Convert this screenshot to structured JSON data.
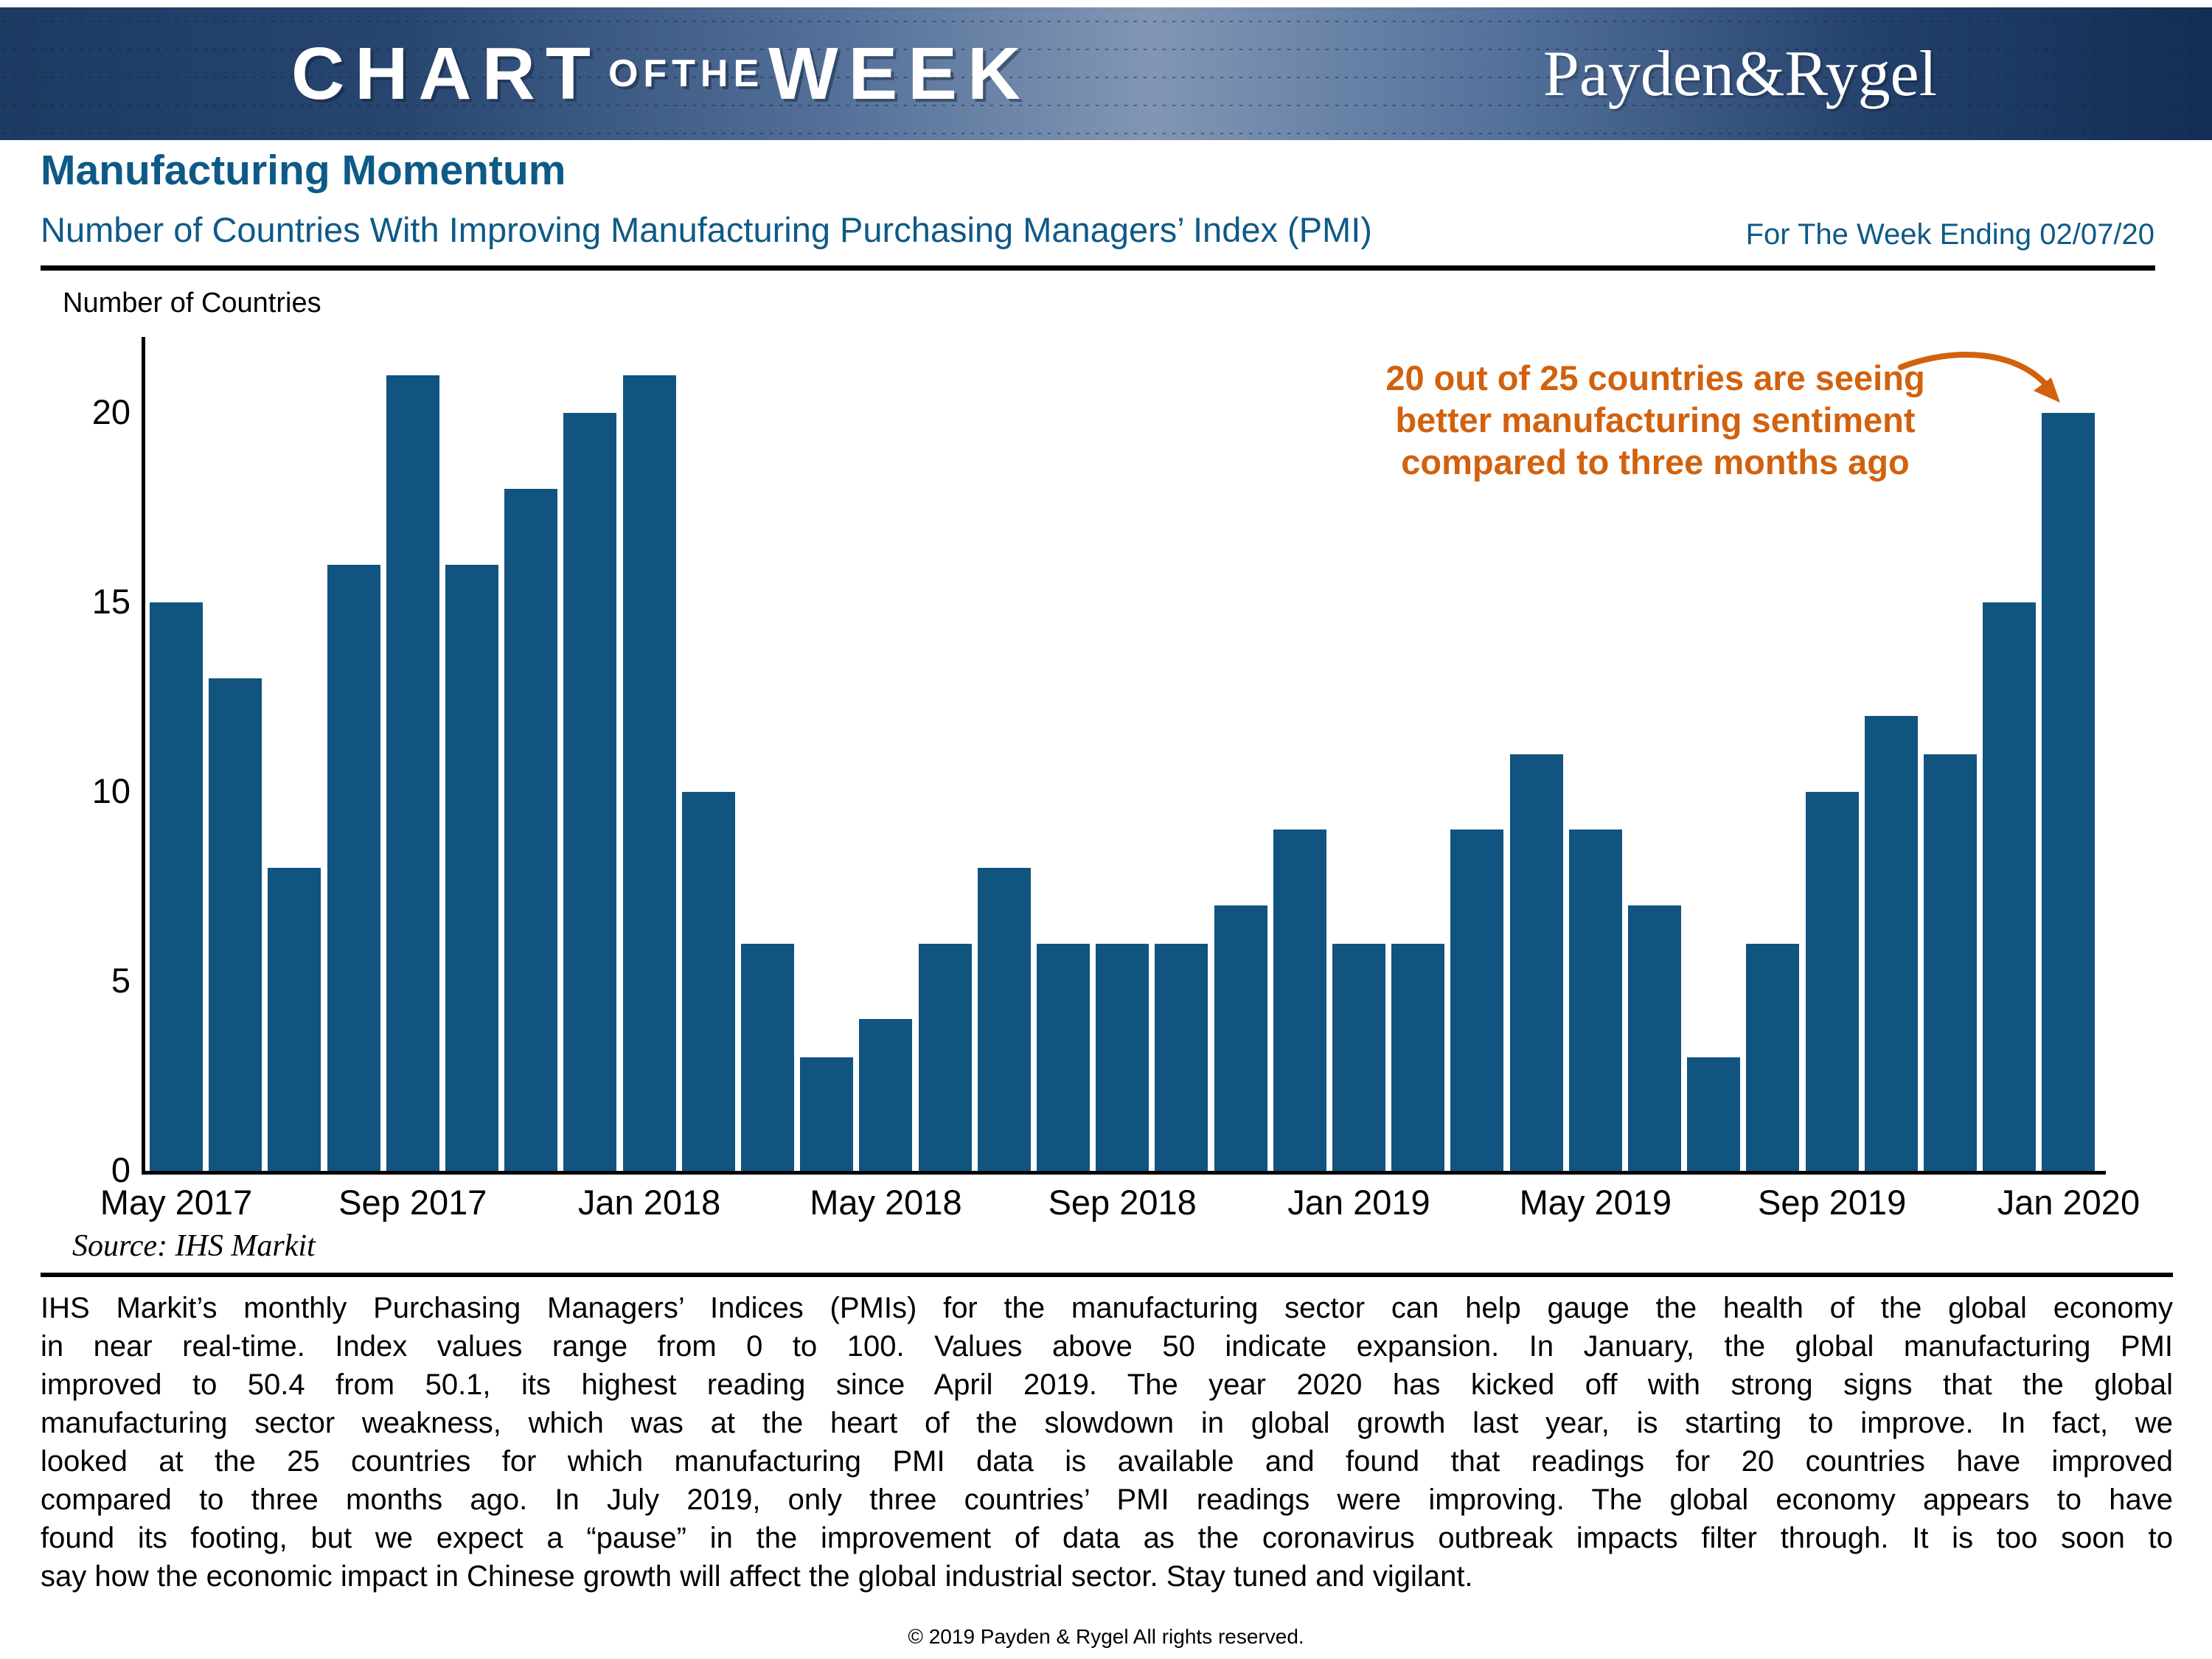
{
  "banner": {
    "logo_chart": "CHART",
    "logo_of_the": "OFTHE",
    "logo_week": "WEEK",
    "brand": "Payden&Rygel"
  },
  "header": {
    "title": "Manufacturing Momentum",
    "subtitle": "Number of Countries With Improving Manufacturing Purchasing Managers’ Index (PMI)",
    "week_ending": "For The Week Ending 02/07/20"
  },
  "chart_data": {
    "type": "bar",
    "title": "Number of Countries With Improving Manufacturing Purchasing Managers’ Index (PMI)",
    "xlabel": "",
    "ylabel": "Number of Countries",
    "categories": [
      "May 2017",
      "Jun 2017",
      "Jul 2017",
      "Aug 2017",
      "Sep 2017",
      "Oct 2017",
      "Nov 2017",
      "Dec 2017",
      "Jan 2018",
      "Feb 2018",
      "Mar 2018",
      "Apr 2018",
      "May 2018",
      "Jun 2018",
      "Jul 2018",
      "Aug 2018",
      "Sep 2018",
      "Oct 2018",
      "Nov 2018",
      "Dec 2018",
      "Jan 2019",
      "Feb 2019",
      "Mar 2019",
      "Apr 2019",
      "May 2019",
      "Jun 2019",
      "Jul 2019",
      "Aug 2019",
      "Sep 2019",
      "Oct 2019",
      "Nov 2019",
      "Dec 2019",
      "Jan 2020"
    ],
    "values": [
      15,
      13,
      8,
      16,
      21,
      16,
      18,
      20,
      21,
      10,
      6,
      3,
      4,
      6,
      8,
      6,
      6,
      6,
      7,
      9,
      6,
      6,
      9,
      11,
      9,
      7,
      3,
      6,
      10,
      12,
      11,
      15,
      20
    ],
    "x_tick_labels": [
      "May 2017",
      "Sep 2017",
      "Jan 2018",
      "May 2018",
      "Sep 2018",
      "Jan 2019",
      "May 2019",
      "Sep 2019",
      "Jan 2020"
    ],
    "x_tick_indices": [
      0,
      4,
      8,
      12,
      16,
      20,
      24,
      28,
      32
    ],
    "y_ticks": [
      0,
      5,
      10,
      15,
      20
    ],
    "ylim": [
      0,
      22
    ],
    "grid": false,
    "legend_position": "none",
    "bar_color": "#10547f"
  },
  "annotation": {
    "line1": "20 out of 25 countries are seeing",
    "line2": "better manufacturing sentiment",
    "line3": "compared to three months ago",
    "color": "#d2610e"
  },
  "source": "Source: IHS Markit",
  "body": {
    "lines": [
      "IHS Markit’s monthly Purchasing Managers’ Indices (PMIs) for the manufacturing sector can help gauge the health of the global economy",
      "in near real-time. Index values range from 0 to 100. Values above 50 indicate expansion. In January, the global manufacturing PMI",
      "improved to 50.4 from 50.1, its highest reading since April 2019. The year 2020 has kicked off with strong signs that the global",
      "manufacturing sector weakness, which was at the heart of the slowdown in global growth last year, is starting to improve. In fact, we",
      "looked at the 25 countries for which manufacturing PMI data is available and found that readings for 20 countries have improved",
      "compared to three months ago. In July 2019, only three countries’ PMI readings were improving. The global economy appears to have",
      "found its footing, but we expect a “pause” in the improvement of data as the coronavirus outbreak impacts filter through. It is too soon to",
      "say how the economic impact in Chinese growth will affect the global industrial sector. Stay tuned and vigilant."
    ]
  },
  "footer": "© 2019 Payden & Rygel All rights reserved."
}
